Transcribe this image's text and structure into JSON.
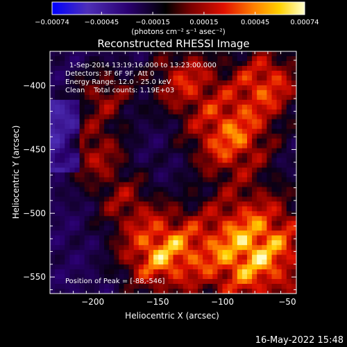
{
  "colorbar": {
    "min": -0.00074,
    "max": 0.00074,
    "tick_labels": [
      "-0.00074",
      "-0.00045",
      "-0.00015",
      "0.00015",
      "0.00045",
      "0.00074"
    ],
    "unit_label": "(photons cm⁻² s⁻¹ asec⁻²)",
    "colormap": [
      "#0000ff",
      "#4e2fb8",
      "#2a0070",
      "#000000",
      "#7a0000",
      "#e01000",
      "#ff8000",
      "#ffd000",
      "#ffffcc"
    ]
  },
  "image": {
    "title": "Reconstructed RHESSI Image",
    "xlabel": "Heliocentric X (arcsec)",
    "ylabel": "Heliocentric Y (arcsec)",
    "xlim": [
      -233,
      -43
    ],
    "ylim": [
      -563,
      -373
    ],
    "x_tick_labels": [
      -200,
      -150,
      -100,
      -50
    ],
    "y_tick_labels": [
      -400,
      -450,
      -500,
      -550
    ],
    "info_lines": [
      "1-Sep-2014 13:19:16.000 to 13:23:00.000",
      "Detectors: 3F 6F 9F, Att 0",
      "Energy Range: 12.0 - 25.0 keV",
      "Clean    Total counts: 1.19E+03"
    ],
    "peak_label": "Position of Peak = [-88,-546]"
  },
  "timestamp": "16-May-2022 15:48"
}
